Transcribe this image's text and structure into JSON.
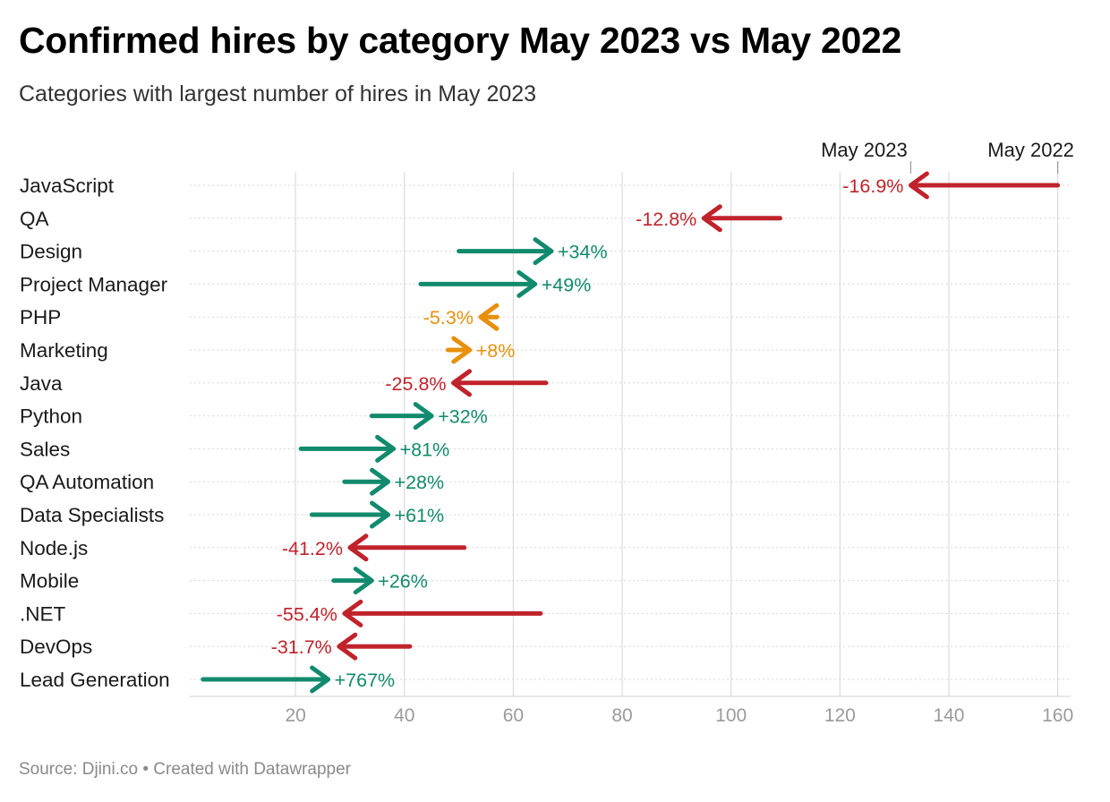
{
  "chart_data": {
    "type": "arrow",
    "title": "Confirmed hires by category May 2023 vs May 2022",
    "subtitle": "Categories with largest number of hires in May 2023",
    "legend": {
      "start_label": "May 2023",
      "end_label": "May 2022",
      "start_value": 133,
      "end_value": 160
    },
    "xlim": [
      0,
      163
    ],
    "xticks": [
      20,
      40,
      60,
      80,
      100,
      120,
      140,
      160
    ],
    "colors": {
      "increase": "#128a6e",
      "decrease": "#c0232b",
      "small_change": "#e8900c"
    },
    "rows": [
      {
        "category": "JavaScript",
        "may_2022": 160,
        "may_2023": 133,
        "change": "-16.9%",
        "trend": "decrease"
      },
      {
        "category": "QA",
        "may_2022": 109,
        "may_2023": 95,
        "change": "-12.8%",
        "trend": "decrease"
      },
      {
        "category": "Design",
        "may_2022": 50,
        "may_2023": 67,
        "change": "+34%",
        "trend": "increase"
      },
      {
        "category": "Project Manager",
        "may_2022": 43,
        "may_2023": 64,
        "change": "+49%",
        "trend": "increase"
      },
      {
        "category": "PHP",
        "may_2022": 57,
        "may_2023": 54,
        "change": "-5.3%",
        "trend": "small_change"
      },
      {
        "category": "Marketing",
        "may_2022": 48,
        "may_2023": 52,
        "change": "+8%",
        "trend": "small_change"
      },
      {
        "category": "Java",
        "may_2022": 66,
        "may_2023": 49,
        "change": "-25.8%",
        "trend": "decrease"
      },
      {
        "category": "Python",
        "may_2022": 34,
        "may_2023": 45,
        "change": "+32%",
        "trend": "increase"
      },
      {
        "category": "Sales",
        "may_2022": 21,
        "may_2023": 38,
        "change": "+81%",
        "trend": "increase"
      },
      {
        "category": "QA Automation",
        "may_2022": 29,
        "may_2023": 37,
        "change": "+28%",
        "trend": "increase"
      },
      {
        "category": "Data Specialists",
        "may_2022": 23,
        "may_2023": 37,
        "change": "+61%",
        "trend": "increase"
      },
      {
        "category": "Node.js",
        "may_2022": 51,
        "may_2023": 30,
        "change": "-41.2%",
        "trend": "decrease"
      },
      {
        "category": "Mobile",
        "may_2022": 27,
        "may_2023": 34,
        "change": "+26%",
        "trend": "increase"
      },
      {
        "category": ".NET",
        "may_2022": 65,
        "may_2023": 29,
        "change": "-55.4%",
        "trend": "decrease"
      },
      {
        "category": "DevOps",
        "may_2022": 41,
        "may_2023": 28,
        "change": "-31.7%",
        "trend": "decrease"
      },
      {
        "category": "Lead Generation",
        "may_2022": 3,
        "may_2023": 26,
        "change": "+767%",
        "trend": "increase"
      }
    ],
    "grid": true
  },
  "footer": {
    "source": "Source: Djini.co • Created with Datawrapper"
  }
}
